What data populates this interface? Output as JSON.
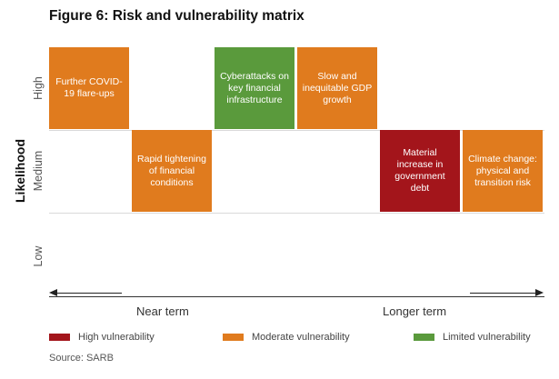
{
  "chart_data": {
    "type": "table",
    "title": "Figure 6: Risk and vulnerability matrix",
    "ylabel": "Likelihood",
    "rows": [
      "High",
      "Medium",
      "Low"
    ],
    "x_axis": {
      "left_label": "Near term",
      "right_label": "Longer term"
    },
    "columns": 6,
    "risks": [
      {
        "label": "Further COVID-19 flare-ups",
        "likelihood": "High",
        "column": 1,
        "vulnerability": "Moderate"
      },
      {
        "label": "Rapid tightening of financial conditions",
        "likelihood": "Medium",
        "column": 2,
        "vulnerability": "Moderate"
      },
      {
        "label": "Cyberattacks on key financial infrastructure",
        "likelihood": "High",
        "column": 3,
        "vulnerability": "Limited"
      },
      {
        "label": "Slow and inequitable GDP growth",
        "likelihood": "High",
        "column": 4,
        "vulnerability": "Moderate"
      },
      {
        "label": "Material increase in government debt",
        "likelihood": "Medium",
        "column": 5,
        "vulnerability": "High"
      },
      {
        "label": "Climate change: physical and transition risk",
        "likelihood": "Medium",
        "column": 6,
        "vulnerability": "Moderate"
      }
    ],
    "legend": [
      {
        "key": "High",
        "label": "High vulnerability",
        "color": "#a3151b"
      },
      {
        "key": "Moderate",
        "label": "Moderate vulnerability",
        "color": "#e07b1e"
      },
      {
        "key": "Limited",
        "label": "Limited vulnerability",
        "color": "#5a9a3c"
      }
    ]
  },
  "source": "Source: SARB"
}
